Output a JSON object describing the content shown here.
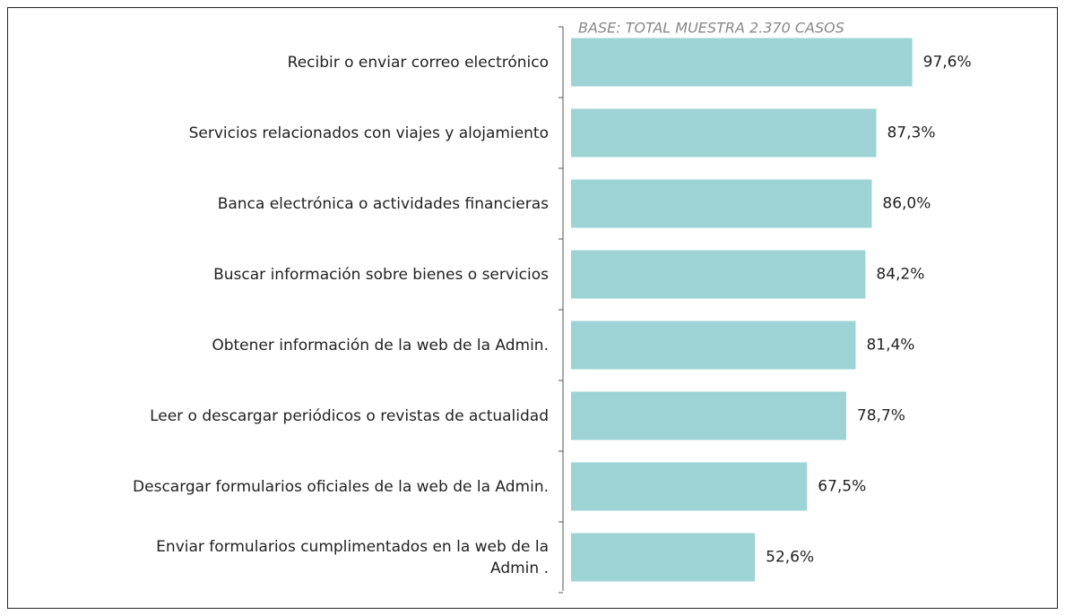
{
  "chart_data": {
    "type": "barh",
    "annotation": "BASE: TOTAL MUESTRA 2.370 CASOS",
    "categories": [
      "Recibir o enviar correo electrónico",
      "Servicios relacionados con viajes y alojamiento",
      "Banca electrónica o actividades financieras",
      "Buscar información sobre bienes o servicios",
      "Obtener información de la web de la Admin.",
      "Leer o descargar periódicos o revistas de actualidad",
      "Descargar formularios oficiales de la web de la Admin.",
      "Enviar formularios cumplimentados en la web de la Admin ."
    ],
    "values": [
      97.6,
      87.3,
      86.0,
      84.2,
      81.4,
      78.7,
      67.5,
      52.6
    ],
    "value_labels": [
      "97,6%",
      "87,3%",
      "86,0%",
      "84,2%",
      "81,4%",
      "78,7%",
      "67,5%",
      "52,6%"
    ],
    "color": "#9ed3d5",
    "xlim": [
      0,
      100
    ]
  }
}
